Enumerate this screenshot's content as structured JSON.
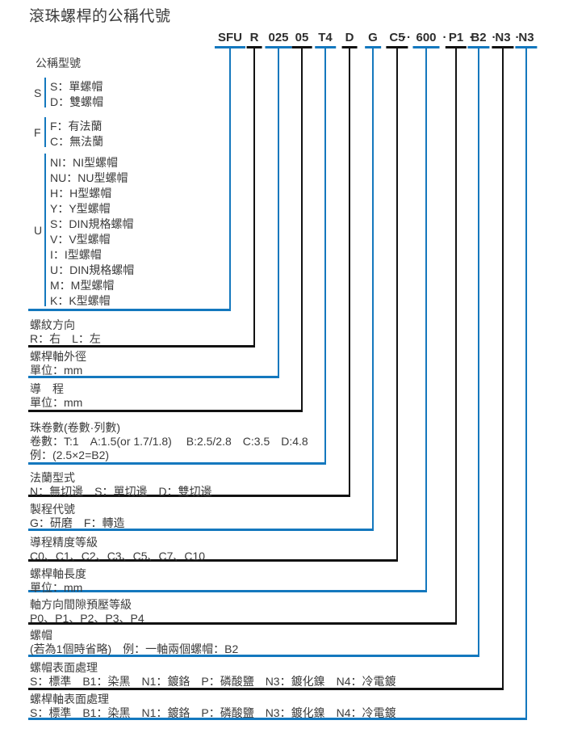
{
  "title": "滾珠螺桿的公稱代號",
  "colors": {
    "blue": "#1478be",
    "black": "#121212",
    "text": "#3b3b3b"
  },
  "code_row": {
    "segments": [
      {
        "text": "SFU",
        "color": "blue"
      },
      {
        "text": "R",
        "color": "black"
      },
      {
        "text": "025",
        "color": "blue"
      },
      {
        "text": "05",
        "color": "black"
      },
      {
        "text": "T4",
        "color": "blue"
      },
      {
        "text": "D",
        "color": "black"
      },
      {
        "text": "G",
        "color": "blue"
      },
      {
        "text": "C5",
        "color": "black"
      },
      {
        "text": "600",
        "color": "blue"
      },
      {
        "text": "P1",
        "color": "black"
      },
      {
        "text": "B2",
        "color": "blue"
      },
      {
        "text": "N3",
        "color": "black"
      },
      {
        "text": "N3",
        "color": "blue"
      }
    ],
    "separators": [
      {
        "text": "··"
      },
      {
        "text": "·"
      },
      {
        "text": "·"
      },
      {
        "text": "·"
      },
      {
        "text": "·"
      }
    ]
  },
  "model_section": {
    "title": "公稱型號",
    "color": "blue",
    "groups": [
      {
        "label": "S",
        "items": [
          "S：單螺帽",
          "D：雙螺帽"
        ]
      },
      {
        "label": "F",
        "items": [
          "F：有法蘭",
          "C：無法蘭"
        ]
      },
      {
        "label": "U",
        "items": [
          "NI：NI型螺帽",
          "NU：NU型螺帽",
          "H：H型螺帽",
          "Y：Y型螺帽",
          "S：DIN規格螺帽",
          "V：V型螺帽",
          "I：I型螺帽",
          "U：DIN規格螺帽",
          "M：M型螺帽",
          "K：K型螺帽"
        ]
      }
    ]
  },
  "sections": [
    {
      "title": "螺紋方向",
      "color": "black",
      "lines": [
        "R：右　L：左"
      ]
    },
    {
      "title": "螺桿軸外徑",
      "color": "blue",
      "lines": [
        "單位：mm"
      ]
    },
    {
      "title": "導　程",
      "color": "black",
      "lines": [
        "單位：mm"
      ]
    },
    {
      "title": "珠卷數(卷數·列數)",
      "color": "blue",
      "lines": [
        "卷數：T:1　A:1.5(or 1.7/1.8)　 B:2.5/2.8　C:3.5　D:4.8",
        "例：(2.5×2=B2)"
      ]
    },
    {
      "title": "法蘭型式",
      "color": "black",
      "lines": [
        "N：無切邊　S：單切邊　D：雙切邊"
      ]
    },
    {
      "title": "製程代號",
      "color": "blue",
      "lines": [
        "G：研磨　F：轉造"
      ]
    },
    {
      "title": "導程精度等級",
      "color": "black",
      "lines": [
        "C0、C1、C2、C3、C5、C7、C10"
      ]
    },
    {
      "title": "螺桿軸長度",
      "color": "blue",
      "lines": [
        "單位：mm"
      ]
    },
    {
      "title": "軸方向間隙預壓等級",
      "color": "black",
      "lines": [
        "P0、P1、P2、P3、P4"
      ]
    },
    {
      "title": "螺帽",
      "color": "blue",
      "lines": [
        "(若為1個時省略)　例：一軸兩個螺帽：B2"
      ]
    },
    {
      "title": "螺帽表面處理",
      "color": "black",
      "lines": [
        "S：標準　B1：染黑　N1：鍍鉻　P：磷酸鹽　N3：鍍化鎳　N4：冷電鍍"
      ]
    },
    {
      "title": "螺桿軸表面處理",
      "color": "blue",
      "lines": [
        "S：標準　B1：染黑　N1：鍍鉻　P：磷酸鹽　N3：鍍化鎳　N4：冷電鍍"
      ]
    }
  ]
}
